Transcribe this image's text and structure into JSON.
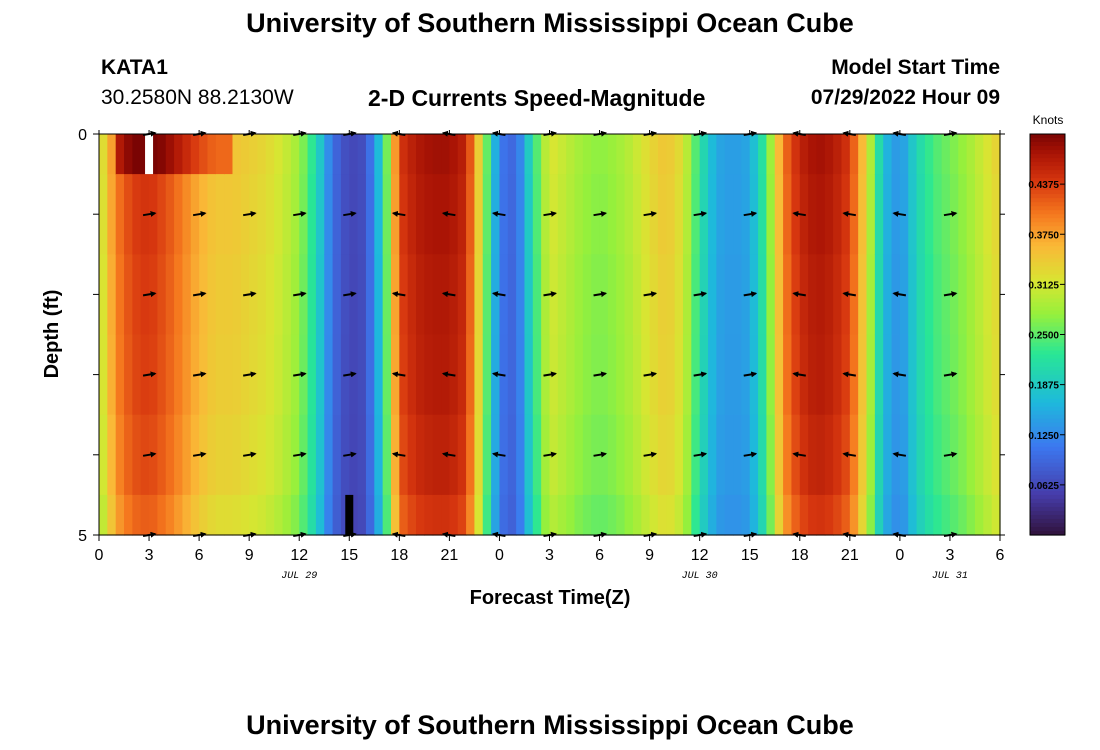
{
  "page": {
    "title": "University of Southern Mississippi Ocean Cube",
    "footer_title": "University of Southern Mississippi Ocean Cube"
  },
  "station": {
    "id": "KATA1",
    "coords": "30.2580N  88.2130W"
  },
  "plot": {
    "subtitle": "2-D Currents Speed-Magnitude"
  },
  "model": {
    "label": "Model Start Time",
    "start": "07/29/2022 Hour 09"
  },
  "chart_data": {
    "type": "heatmap",
    "title": "2-D Currents Speed-Magnitude",
    "xlabel": "Forecast Time(Z)",
    "ylabel": "Depth (ft)",
    "x_tick_labels": [
      "0",
      "3",
      "6",
      "9",
      "12",
      "15",
      "18",
      "21",
      "0",
      "3",
      "6",
      "9",
      "12",
      "15",
      "18",
      "21",
      "0",
      "3",
      "6"
    ],
    "x_hours": [
      0,
      3,
      6,
      9,
      12,
      15,
      18,
      21,
      24,
      27,
      30,
      33,
      36,
      39,
      42,
      45,
      48,
      51,
      54
    ],
    "xlim": [
      0,
      54
    ],
    "date_labels": [
      {
        "text": "JUL 29",
        "hour": 12
      },
      {
        "text": "JUL 30",
        "hour": 36
      },
      {
        "text": "JUL 31",
        "hour": 51
      }
    ],
    "y_tick_labels": [
      "0",
      "5"
    ],
    "ylim": [
      0,
      5
    ],
    "depth_levels": [
      0.5,
      1.5,
      2.5,
      3.5,
      4.5
    ],
    "colorbar": {
      "label": "Knots",
      "ticks": [
        "0.4375",
        "0.3750",
        "0.3125",
        "0.2500",
        "0.1875",
        "0.1250",
        "0.0625"
      ],
      "tick_values": [
        0.4375,
        0.375,
        0.3125,
        0.25,
        0.1875,
        0.125,
        0.0625
      ],
      "range": [
        0.0,
        0.5
      ]
    },
    "speed_profile": {
      "hours": [
        0,
        1,
        2,
        3,
        4,
        5,
        6,
        7,
        8,
        9,
        10,
        11,
        12,
        13,
        14,
        15,
        16,
        17,
        18,
        19,
        20,
        21,
        22,
        23,
        24,
        25,
        26,
        27,
        28,
        29,
        30,
        31,
        32,
        33,
        34,
        35,
        36,
        37,
        38,
        39,
        40,
        41,
        42,
        43,
        44,
        45,
        46,
        47,
        48,
        49,
        50,
        51,
        52,
        53,
        54
      ],
      "speed_knots": [
        0.3,
        0.4,
        0.44,
        0.45,
        0.43,
        0.4,
        0.37,
        0.35,
        0.35,
        0.34,
        0.33,
        0.31,
        0.28,
        0.21,
        0.1,
        0.06,
        0.07,
        0.2,
        0.44,
        0.47,
        0.48,
        0.48,
        0.46,
        0.3,
        0.11,
        0.09,
        0.22,
        0.32,
        0.3,
        0.28,
        0.27,
        0.28,
        0.3,
        0.33,
        0.35,
        0.32,
        0.22,
        0.15,
        0.14,
        0.15,
        0.24,
        0.4,
        0.46,
        0.48,
        0.47,
        0.44,
        0.33,
        0.17,
        0.13,
        0.2,
        0.24,
        0.26,
        0.28,
        0.31,
        0.34
      ]
    },
    "surface_anomaly": {
      "hour_start": 1,
      "hour_end": 8,
      "boost": 0.06
    },
    "vector_arrows": {
      "hours": [
        3,
        6,
        9,
        12,
        15,
        18,
        21,
        24,
        27,
        30,
        33,
        36,
        39,
        42,
        45,
        48,
        51
      ],
      "directions": [
        "E",
        "E",
        "E",
        "E",
        "E",
        "W",
        "W",
        "W",
        "E",
        "E",
        "E",
        "E",
        "E",
        "W",
        "W",
        "W",
        "E"
      ]
    },
    "missing_cells": [
      {
        "hour": 3,
        "depth_range": [
          0,
          0.5
        ],
        "color": "#ffffff"
      },
      {
        "hour": 15,
        "depth_range": [
          4.5,
          5
        ],
        "color": "#000000"
      }
    ]
  }
}
